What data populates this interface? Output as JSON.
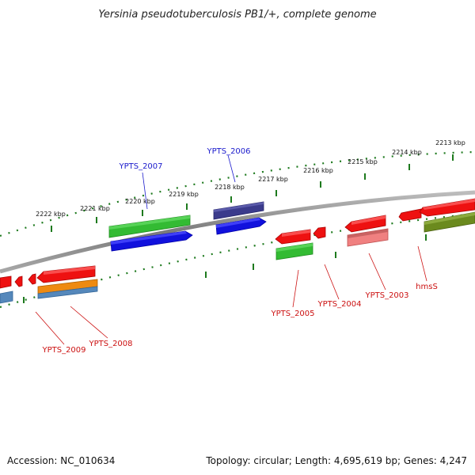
{
  "title": "Yersinia pseudotuberculosis PB1/+, complete genome",
  "footer": {
    "accession": "Accession: NC_010634",
    "summary": "Topology: circular; Length: 4,695,619 bp; Genes: 4,247"
  },
  "colors": {
    "backbone": "#8a8a8a",
    "ticks": "#1e7a1e",
    "label_blue": "#1a1acc",
    "label_red": "#cc1111"
  },
  "tick_labels": [
    "2222 kbp",
    "2221 kbp",
    "2220 kbp",
    "2219 kbp",
    "2218 kbp",
    "2217 kbp",
    "2216 kbp",
    "2215 kbp",
    "2214 kbp",
    "2213 kbp"
  ],
  "gene_labels": {
    "YPTS_2007": "YPTS_2007",
    "YPTS_2006": "YPTS_2006",
    "YPTS_2005": "YPTS_2005",
    "YPTS_2004": "YPTS_2004",
    "YPTS_2003": "YPTS_2003",
    "hmsS": "hmsS",
    "YPTS_2009": "YPTS_2009",
    "YPTS_2008": "YPTS_2008"
  }
}
